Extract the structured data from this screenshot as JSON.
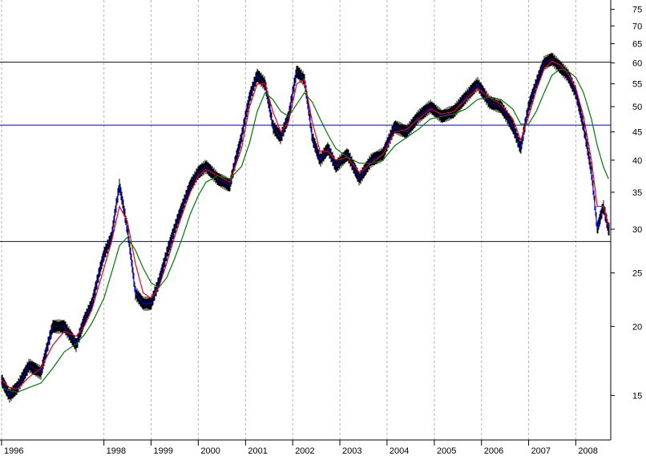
{
  "chart_data": {
    "type": "line",
    "y_scale": "log",
    "x_range": [
      "1995-11-01",
      "2008-09-15"
    ],
    "ylim": [
      12.5,
      78
    ],
    "grid": "vertical dashed at year ticks",
    "x_ticks": [
      {
        "label": "1996",
        "date": "1995-11-01"
      },
      {
        "label": "1998",
        "date": "1998-01-01"
      },
      {
        "label": "1999",
        "date": "1999-01-01"
      },
      {
        "label": "2000",
        "date": "2000-01-01"
      },
      {
        "label": "2001",
        "date": "2001-01-01"
      },
      {
        "label": "2002",
        "date": "2002-01-01"
      },
      {
        "label": "2003",
        "date": "2003-01-01"
      },
      {
        "label": "2004",
        "date": "2004-01-01"
      },
      {
        "label": "2005",
        "date": "2005-01-01"
      },
      {
        "label": "2006",
        "date": "2006-01-01"
      },
      {
        "label": "2007",
        "date": "2007-01-01"
      },
      {
        "label": "2008",
        "date": "2008-01-01"
      }
    ],
    "y_ticks": [
      15,
      20,
      25,
      30,
      35,
      40,
      45,
      50,
      55,
      60,
      65,
      70,
      75
    ],
    "horizontal_lines": [
      {
        "value": 60.2,
        "color": "#0000cc"
      },
      {
        "value": 46.3,
        "color": "#0000cc"
      },
      {
        "value": 28.5,
        "color": "#0000cc"
      }
    ],
    "series": [
      {
        "role": "price",
        "style": "bars",
        "colors": {
          "bar": "#000000",
          "close_line": "#0000ff"
        },
        "x": [
          "1995-11-01",
          "1996-01-01",
          "1996-03-01",
          "1996-06-01",
          "1996-09-01",
          "1996-12-01",
          "1997-03-01",
          "1997-06-01",
          "1997-08-01",
          "1997-10-01",
          "1998-01-01",
          "1998-03-01",
          "1998-05-01",
          "1998-07-01",
          "1998-09-01",
          "1998-11-01",
          "1999-01-01",
          "1999-03-01",
          "1999-05-01",
          "1999-07-01",
          "1999-09-01",
          "1999-11-01",
          "2000-01-01",
          "2000-03-01",
          "2000-06-01",
          "2000-09-01",
          "2000-12-01",
          "2001-02-01",
          "2001-04-01",
          "2001-06-01",
          "2001-08-01",
          "2001-10-01",
          "2001-12-01",
          "2002-02-01",
          "2002-04-01",
          "2002-06-01",
          "2002-08-01",
          "2002-10-01",
          "2002-12-01",
          "2003-03-01",
          "2003-06-01",
          "2003-09-01",
          "2003-12-01",
          "2004-03-01",
          "2004-06-01",
          "2004-09-01",
          "2004-12-01",
          "2005-03-01",
          "2005-06-01",
          "2005-09-01",
          "2005-12-01",
          "2006-03-01",
          "2006-06-01",
          "2006-09-01",
          "2006-11-01",
          "2007-01-01",
          "2007-03-01",
          "2007-05-01",
          "2007-07-01",
          "2007-09-01",
          "2007-11-01",
          "2008-01-01",
          "2008-03-01",
          "2008-05-01",
          "2008-06-15",
          "2008-08-01",
          "2008-09-10"
        ],
        "close": [
          16,
          15,
          15.5,
          17,
          16.5,
          20,
          20,
          18.5,
          20.5,
          22,
          27,
          29,
          36,
          30,
          23,
          22,
          22,
          24,
          27,
          30,
          33,
          36,
          38,
          39,
          37,
          36,
          44,
          52,
          57,
          55,
          46,
          44,
          48,
          58,
          56,
          44,
          40,
          42,
          39,
          41,
          37,
          40,
          41,
          46,
          45,
          48,
          50,
          48,
          49,
          52,
          55,
          51,
          50,
          46,
          42,
          50,
          55,
          60,
          61,
          59,
          57,
          53,
          46,
          38,
          30,
          33,
          30
        ]
      },
      {
        "role": "fast_ma",
        "color": "#e8001c",
        "values": [
          16,
          15.5,
          15.4,
          16.2,
          16.8,
          18.5,
          19.6,
          19.2,
          20,
          21.5,
          25.5,
          28.5,
          33,
          31,
          26,
          23,
          22.5,
          23.5,
          26,
          29,
          32,
          35,
          37.5,
          38.5,
          37.5,
          36.5,
          42,
          50,
          55,
          55,
          49,
          45,
          47,
          55,
          56,
          47,
          41.5,
          41.5,
          40,
          40.5,
          38,
          39.5,
          41,
          45,
          45.5,
          47.5,
          49.5,
          48.5,
          49,
          51.5,
          54,
          52,
          50.5,
          47.5,
          43.5,
          48,
          53.5,
          58.5,
          60.5,
          59.5,
          57.5,
          54,
          48,
          40,
          33,
          33,
          30.5
        ]
      },
      {
        "role": "slow_ma",
        "color": "#007700",
        "values": [
          15.5,
          15.3,
          15.2,
          15.5,
          15.8,
          16.8,
          18,
          18.6,
          19.3,
          20.3,
          22.5,
          25,
          28,
          29,
          27.5,
          25.5,
          24,
          23.5,
          24.5,
          26.5,
          29,
          32,
          34.5,
          36.5,
          37.5,
          37,
          39,
          43,
          49,
          53,
          51.5,
          49,
          48,
          50.5,
          53,
          51,
          47.5,
          44.5,
          42,
          40.5,
          39.5,
          39.5,
          40,
          42.5,
          44,
          45.5,
          47.5,
          48,
          48.5,
          49.5,
          51.5,
          52,
          51.5,
          49.5,
          46.5,
          46.5,
          49,
          53,
          57,
          58.5,
          58,
          56.5,
          53,
          47.5,
          42.5,
          39,
          37
        ]
      }
    ]
  }
}
